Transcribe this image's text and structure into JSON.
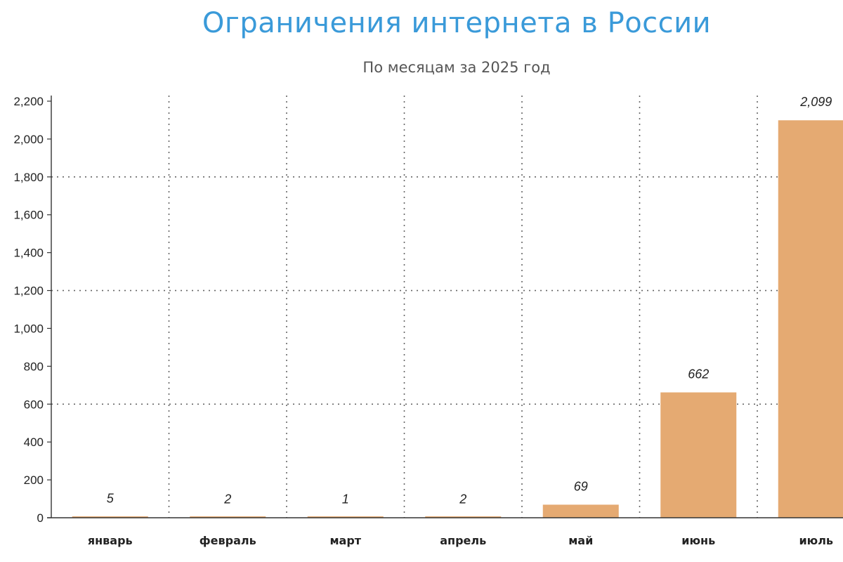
{
  "chart_data": {
    "type": "bar",
    "title": "Ограничения интернета в России",
    "subtitle": "По месяцам за 2025 год",
    "categories": [
      "январь",
      "февраль",
      "март",
      "апрель",
      "май",
      "июнь",
      "июль"
    ],
    "values": [
      5,
      2,
      1,
      2,
      69,
      662,
      2099
    ],
    "data_labels": [
      "5",
      "2",
      "1",
      "2",
      "69",
      "662",
      "2,099"
    ],
    "ylim": [
      0,
      2200
    ],
    "yticks": [
      0,
      200,
      400,
      600,
      800,
      1000,
      1200,
      1400,
      1600,
      1800,
      2000,
      2200
    ],
    "ytick_labels": [
      "0",
      "200",
      "400",
      "600",
      "800",
      "1,000",
      "1,200",
      "1,400",
      "1,600",
      "1,800",
      "2,000",
      "2,200"
    ],
    "grid_y_values": [
      600,
      1200,
      1800
    ],
    "grid": true,
    "xlabel": "",
    "ylabel": "",
    "colors": {
      "bar": "#e5aa72",
      "title": "#3a9ad9",
      "grid": "#666666",
      "axis": "#333333"
    }
  }
}
